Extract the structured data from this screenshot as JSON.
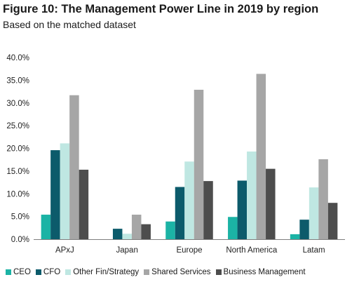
{
  "title": "Figure 10: The Management Power Line in 2019 by region",
  "subtitle": "Based on the matched dataset",
  "chart_data": {
    "type": "bar",
    "categories": [
      "APxJ",
      "Japan",
      "Europe",
      "North America",
      "Latam"
    ],
    "series": [
      {
        "name": "CEO",
        "color": "#1bb3a5",
        "values": [
          5.4,
          0.0,
          3.9,
          4.9,
          1.1
        ]
      },
      {
        "name": "CFO",
        "color": "#0c5b6b",
        "values": [
          19.6,
          2.3,
          11.5,
          12.9,
          4.3
        ]
      },
      {
        "name": "Other Fin/Strategy",
        "color": "#bfe7e2",
        "values": [
          21.1,
          1.2,
          17.1,
          19.3,
          11.4
        ]
      },
      {
        "name": "Shared Services",
        "color": "#a6a6a6",
        "values": [
          31.7,
          5.4,
          32.9,
          36.4,
          17.6
        ]
      },
      {
        "name": "Business Management",
        "color": "#4d4d4d",
        "values": [
          15.3,
          3.3,
          12.8,
          15.5,
          8.0
        ]
      }
    ],
    "ylim": [
      0,
      40
    ],
    "yticks": [
      0,
      5,
      10,
      15,
      20,
      25,
      30,
      35,
      40
    ],
    "ytick_labels": [
      "0.0%",
      "5.0%",
      "10.0%",
      "15.0%",
      "20.0%",
      "25.0%",
      "30.0%",
      "35.0%",
      "40.0%"
    ],
    "xlabel": "",
    "ylabel": "",
    "grid": false,
    "legend_position": "bottom"
  }
}
